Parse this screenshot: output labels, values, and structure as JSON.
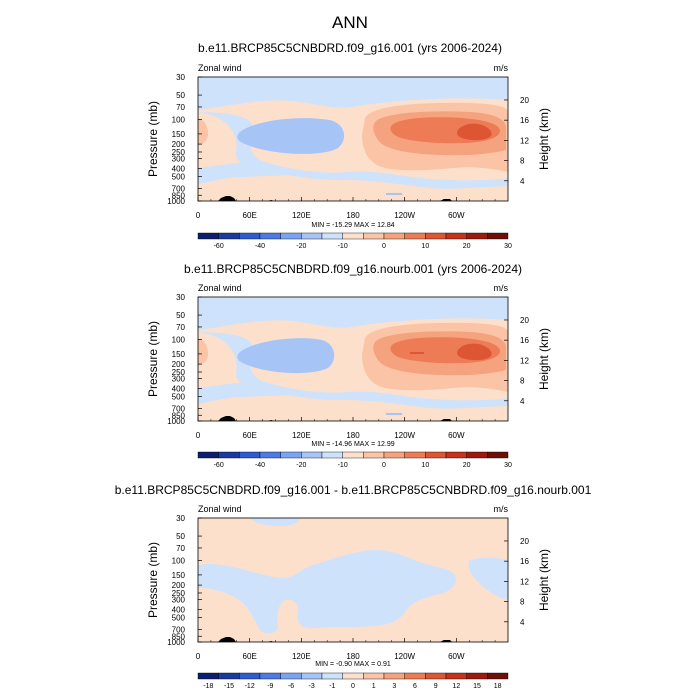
{
  "figure": {
    "title": "ANN"
  },
  "colors": {
    "panel1_palette": [
      "#0b1f6e",
      "#1a3a9e",
      "#2f5bd1",
      "#4d7be6",
      "#7ba3f2",
      "#a7c4f7",
      "#cfe2fb",
      "#fde0cc",
      "#fbc4a6",
      "#f5a27e",
      "#ed7b56",
      "#dd5533",
      "#c4331a",
      "#9c1a0e",
      "#6b0f08"
    ],
    "panel3_palette": [
      "#0b1f6e",
      "#1a3a9e",
      "#2f5bd1",
      "#4d7be6",
      "#7ba3f2",
      "#a7c4f7",
      "#cfe2fb",
      "#fde0cc",
      "#fbc4a6",
      "#f5a27e",
      "#ed7b56",
      "#dd5533",
      "#c4331a",
      "#9c1a0e",
      "#6b0f08"
    ],
    "ground": "#000000"
  },
  "chart_data": [
    {
      "type": "heatmap",
      "title": "b.e11.BRCP85C5CNBDRD.f09_g16.001 (yrs 2006-2024)",
      "left_label": "Zonal wind",
      "right_label": "m/s",
      "ylabel": "Pressure (mb)",
      "y2label": "Height (km)",
      "x_ticks": [
        "0",
        "60E",
        "120E",
        "180",
        "120W",
        "60W"
      ],
      "x_tick_values": [
        0,
        60,
        120,
        180,
        240,
        300
      ],
      "xlim": [
        0,
        360
      ],
      "y_ticks": [
        "30",
        "50",
        "70",
        "100",
        "150",
        "200",
        "250",
        "300",
        "400",
        "500",
        "700",
        "850",
        "1000"
      ],
      "y_tick_values": [
        30,
        50,
        70,
        100,
        150,
        200,
        250,
        300,
        400,
        500,
        700,
        850,
        1000
      ],
      "ylim": [
        30,
        1000
      ],
      "height_ticks": [
        "20",
        "16",
        "12",
        "8",
        "4"
      ],
      "height_tick_values": [
        20,
        16,
        12,
        8,
        4
      ],
      "stats": "MIN = -15.29  MAX =  12.84",
      "colorbar_labels": [
        "-60",
        "-40",
        "-20",
        "-10",
        "0",
        "10",
        "20",
        "30"
      ],
      "colorbar_levels": [
        -70,
        -60,
        -50,
        -40,
        -30,
        -20,
        -10,
        -5,
        0,
        5,
        10,
        15,
        20,
        25,
        30
      ],
      "max_scale": 1.0
    },
    {
      "type": "heatmap",
      "title": "b.e11.BRCP85C5CNBDRD.f09_g16.nourb.001 (yrs 2006-2024)",
      "left_label": "Zonal wind",
      "right_label": "m/s",
      "ylabel": "Pressure (mb)",
      "y2label": "Height (km)",
      "x_ticks": [
        "0",
        "60E",
        "120E",
        "180",
        "120W",
        "60W"
      ],
      "x_tick_values": [
        0,
        60,
        120,
        180,
        240,
        300
      ],
      "xlim": [
        0,
        360
      ],
      "y_ticks": [
        "30",
        "50",
        "70",
        "100",
        "150",
        "200",
        "250",
        "300",
        "400",
        "500",
        "700",
        "850",
        "1000"
      ],
      "y_tick_values": [
        30,
        50,
        70,
        100,
        150,
        200,
        250,
        300,
        400,
        500,
        700,
        850,
        1000
      ],
      "ylim": [
        30,
        1000
      ],
      "height_ticks": [
        "20",
        "16",
        "12",
        "8",
        "4"
      ],
      "height_tick_values": [
        20,
        16,
        12,
        8,
        4
      ],
      "stats": "MIN = -14.96  MAX =  12.99",
      "colorbar_labels": [
        "-60",
        "-40",
        "-20",
        "-10",
        "0",
        "10",
        "20",
        "30"
      ],
      "colorbar_levels": [
        -70,
        -60,
        -50,
        -40,
        -30,
        -20,
        -10,
        -5,
        0,
        5,
        10,
        15,
        20,
        25,
        30
      ],
      "max_scale": 1.0
    },
    {
      "type": "heatmap",
      "title": "b.e11.BRCP85C5CNBDRD.f09_g16.001 - b.e11.BRCP85C5CNBDRD.f09_g16.nourb.001",
      "left_label": "Zonal wind",
      "right_label": "m/s",
      "ylabel": "Pressure (mb)",
      "y2label": "Height (km)",
      "x_ticks": [
        "0",
        "60E",
        "120E",
        "180",
        "120W",
        "60W"
      ],
      "x_tick_values": [
        0,
        60,
        120,
        180,
        240,
        300
      ],
      "xlim": [
        0,
        360
      ],
      "y_ticks": [
        "30",
        "50",
        "70",
        "100",
        "150",
        "200",
        "250",
        "300",
        "400",
        "500",
        "700",
        "850",
        "1000"
      ],
      "y_tick_values": [
        30,
        50,
        70,
        100,
        150,
        200,
        250,
        300,
        400,
        500,
        700,
        850,
        1000
      ],
      "ylim": [
        30,
        1000
      ],
      "height_ticks": [
        "20",
        "16",
        "12",
        "8",
        "4"
      ],
      "height_tick_values": [
        20,
        16,
        12,
        8,
        4
      ],
      "stats": "MIN = -0.90  MAX =  0.91",
      "colorbar_labels": [
        "-18",
        "-15",
        "-12",
        "-9",
        "-6",
        "-3",
        "-1",
        "0",
        "1",
        "3",
        "6",
        "9",
        "12",
        "15",
        "18"
      ],
      "colorbar_levels": [
        -18,
        -15,
        -12,
        -9,
        -6,
        -3,
        -1,
        0,
        1,
        3,
        6,
        9,
        12,
        15,
        18
      ],
      "max_scale": 1.0
    }
  ]
}
